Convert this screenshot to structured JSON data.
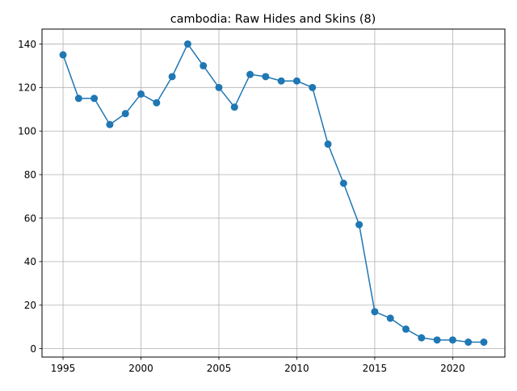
{
  "chart_data": {
    "type": "line",
    "title": "cambodia: Raw Hides and Skins (8)",
    "xlabel": "",
    "ylabel": "",
    "grid": true,
    "xlim": [
      1993.65,
      2023.35
    ],
    "ylim": [
      -3.85,
      146.85
    ],
    "xticks": [
      1995,
      2000,
      2005,
      2010,
      2015,
      2020
    ],
    "yticks": [
      0,
      20,
      40,
      60,
      80,
      100,
      120,
      140
    ],
    "series": [
      {
        "color": "#1f77b4",
        "marker": "circle",
        "x": [
          1995,
          1996,
          1997,
          1998,
          1999,
          2000,
          2001,
          2002,
          2003,
          2004,
          2005,
          2006,
          2007,
          2008,
          2009,
          2010,
          2011,
          2012,
          2013,
          2014,
          2015,
          2016,
          2017,
          2018,
          2019,
          2020,
          2021,
          2022
        ],
        "y": [
          135,
          115,
          115,
          103,
          108,
          117,
          113,
          125,
          140,
          130,
          120,
          111,
          126,
          125,
          123,
          123,
          120,
          94,
          76,
          57,
          17,
          14,
          9,
          5,
          4,
          4,
          3,
          3
        ]
      }
    ]
  }
}
